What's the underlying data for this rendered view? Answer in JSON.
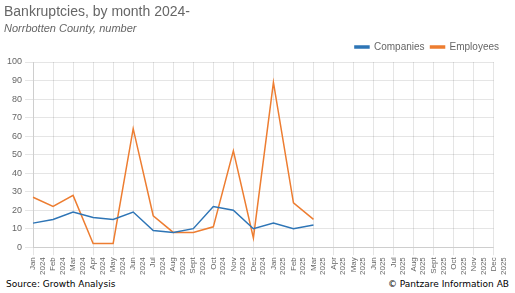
{
  "chart_data": {
    "type": "line",
    "title": "Bankruptcies, by month 2024-",
    "subtitle": "Norrbotten County, number",
    "annotations": [
      "Source: Growth Analysis",
      "© Pantzare Information AB"
    ],
    "categories": [
      "Jan\n2024",
      "Feb\n2024",
      "Mar\n2024",
      "Apr\n2024",
      "May\n2024",
      "Jun\n2024",
      "Jul\n2024",
      "Aug\n2024",
      "Sept\n2024",
      "Oct\n2024",
      "Nov\n2024",
      "Dec\n2024",
      "Jan\n2025",
      "Feb\n2025",
      "Mar\n2025",
      "Apr\n2025",
      "May\n2025",
      "Jun\n2025",
      "Jul\n2025",
      "Aug\n2025",
      "Sept\n2025",
      "Oct\n2025",
      "Nov\n2025",
      "Dec\n2025"
    ],
    "series": [
      {
        "name": "Companies",
        "color": "#2e75b6",
        "values": [
          13,
          15,
          19,
          16,
          15,
          19,
          9,
          8,
          10,
          22,
          20,
          10,
          13,
          10,
          12,
          null,
          null,
          null,
          null,
          null,
          null,
          null,
          null,
          null
        ]
      },
      {
        "name": "Employees",
        "color": "#ed7d31",
        "values": [
          27,
          22,
          28,
          2,
          2,
          64,
          17,
          8,
          8,
          11,
          52,
          5,
          89,
          24,
          15,
          null,
          null,
          null,
          null,
          null,
          null,
          null,
          null,
          null
        ]
      }
    ],
    "ylim": [
      0,
      100
    ],
    "yticks": [
      0,
      10,
      20,
      30,
      40,
      50,
      60,
      70,
      80,
      90,
      100
    ],
    "grid": true,
    "legend": "upper right"
  }
}
